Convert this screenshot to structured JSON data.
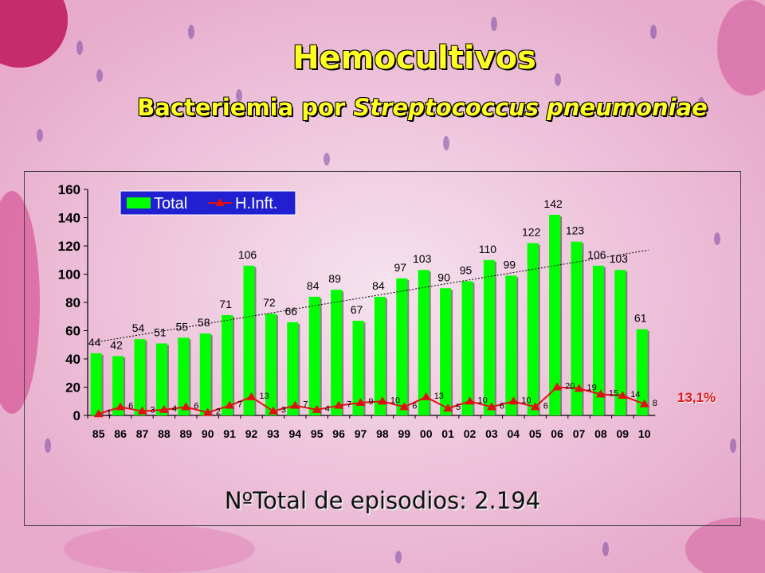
{
  "title": "Hemocultivos",
  "subtitle_prefix": "Bacteriemia por ",
  "subtitle_italic": "Streptococcus pneumoniae",
  "footer": "NºTotal de episodios: 2.194",
  "annotation": "13,1%",
  "colors": {
    "bar": "#00ff00",
    "line": "#e01010",
    "title": "#ffff22",
    "legend_bg": "#2020d0"
  },
  "chart_data": {
    "type": "bar",
    "categories": [
      "85",
      "86",
      "87",
      "88",
      "89",
      "90",
      "91",
      "92",
      "93",
      "94",
      "95",
      "96",
      "97",
      "98",
      "99",
      "00",
      "01",
      "02",
      "03",
      "04",
      "05",
      "06",
      "07",
      "08",
      "09",
      "10"
    ],
    "series": [
      {
        "name": "Total",
        "type": "bar",
        "values": [
          44,
          42,
          54,
          51,
          55,
          58,
          71,
          106,
          72,
          66,
          84,
          89,
          67,
          84,
          97,
          103,
          90,
          95,
          110,
          99,
          122,
          142,
          123,
          106,
          103,
          61
        ]
      },
      {
        "name": "H.Inft.",
        "type": "line",
        "values": [
          1,
          6,
          3,
          4,
          6,
          2,
          7,
          13,
          3,
          7,
          4,
          7,
          9,
          10,
          6,
          13,
          5,
          10,
          6,
          10,
          6,
          20,
          19,
          15,
          14,
          8
        ]
      }
    ],
    "ylim": [
      0,
      160
    ],
    "yticks": [
      0,
      20,
      40,
      60,
      80,
      100,
      120,
      140,
      160
    ],
    "trendline": true,
    "legend": "top-left"
  }
}
